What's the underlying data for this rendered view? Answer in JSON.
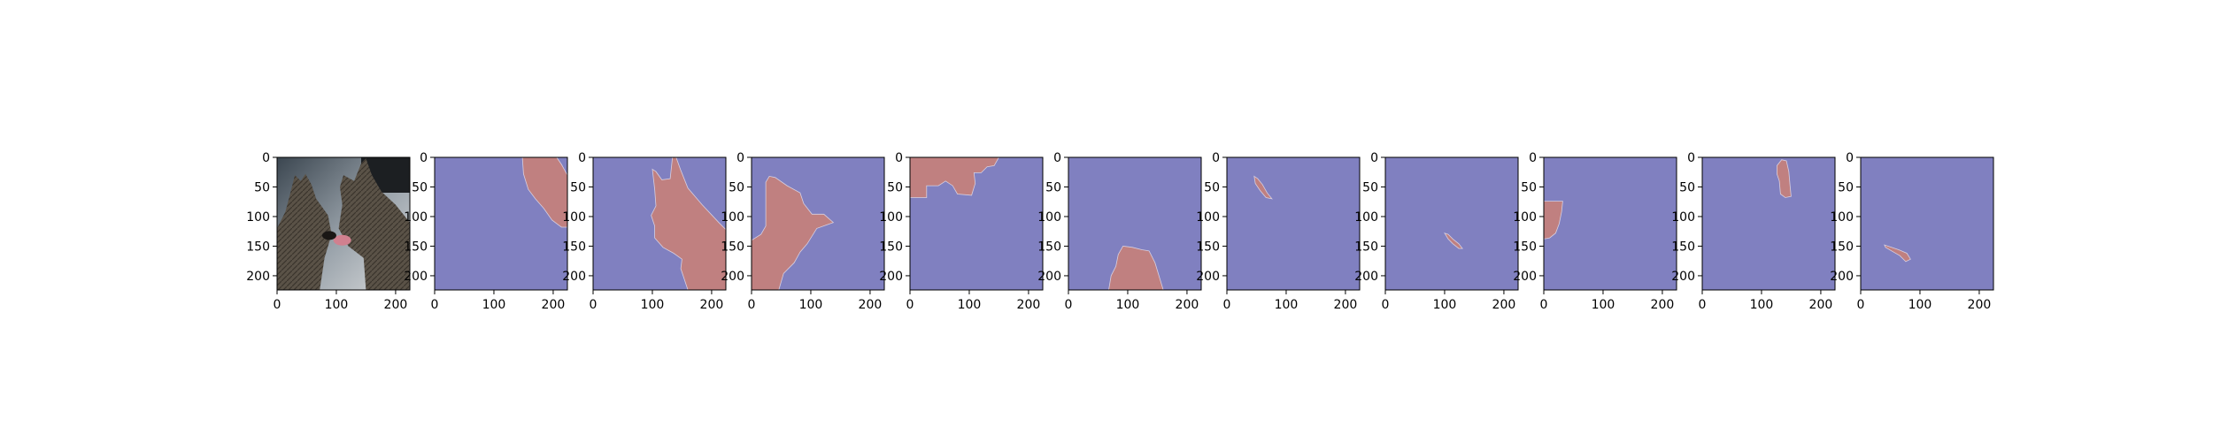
{
  "chart_data": {
    "type": "image-grid",
    "panel_count": 11,
    "image_extent": [
      0,
      224
    ],
    "x_ticks": [
      0,
      100,
      200
    ],
    "x_tick_labels": [
      "0",
      "100",
      "200"
    ],
    "y_ticks": [
      0,
      50,
      100,
      150,
      200
    ],
    "y_tick_labels": [
      "0",
      "50",
      "100",
      "150",
      "200"
    ],
    "colors": {
      "background_class": "#8080c0",
      "mask_class": "#c08080",
      "axes_edge": "#000000"
    },
    "panels": [
      {
        "kind": "photo",
        "subject": "two german shepherd dogs"
      },
      {
        "kind": "mask",
        "polygons": [
          [
            [
              148,
              0
            ],
            [
              206,
              0
            ],
            [
              214,
              12
            ],
            [
              224,
              30
            ],
            [
              224,
              118
            ],
            [
              214,
              118
            ],
            [
              198,
              106
            ],
            [
              184,
              86
            ],
            [
              170,
              70
            ],
            [
              158,
              54
            ],
            [
              150,
              28
            ]
          ]
        ]
      },
      {
        "kind": "mask",
        "polygons": [
          [
            [
              100,
              20
            ],
            [
              106,
              24
            ],
            [
              116,
              38
            ],
            [
              130,
              36
            ],
            [
              134,
              0
            ],
            [
              140,
              0
            ],
            [
              148,
              22
            ],
            [
              160,
              52
            ],
            [
              184,
              80
            ],
            [
              212,
              110
            ],
            [
              224,
              122
            ],
            [
              224,
              224
            ],
            [
              160,
              224
            ],
            [
              148,
              188
            ],
            [
              150,
              172
            ],
            [
              136,
              162
            ],
            [
              118,
              152
            ],
            [
              104,
              136
            ],
            [
              104,
              116
            ],
            [
              98,
              98
            ],
            [
              106,
              82
            ],
            [
              104,
              54
            ]
          ]
        ]
      },
      {
        "kind": "mask",
        "polygons": [
          [
            [
              24,
              42
            ],
            [
              30,
              32
            ],
            [
              40,
              34
            ],
            [
              60,
              48
            ],
            [
              82,
              60
            ],
            [
              88,
              78
            ],
            [
              102,
              96
            ],
            [
              122,
              96
            ],
            [
              138,
              110
            ],
            [
              110,
              120
            ],
            [
              94,
              146
            ],
            [
              82,
              160
            ],
            [
              72,
              178
            ],
            [
              54,
              196
            ],
            [
              46,
              224
            ],
            [
              0,
              224
            ],
            [
              0,
              140
            ],
            [
              16,
              130
            ],
            [
              24,
              116
            ]
          ]
        ]
      },
      {
        "kind": "mask",
        "polygons": [
          [
            [
              0,
              0
            ],
            [
              150,
              0
            ],
            [
              142,
              14
            ],
            [
              130,
              16
            ],
            [
              120,
              26
            ],
            [
              108,
              26
            ],
            [
              110,
              44
            ],
            [
              104,
              64
            ],
            [
              80,
              62
            ],
            [
              72,
              48
            ],
            [
              60,
              40
            ],
            [
              48,
              48
            ],
            [
              28,
              48
            ],
            [
              28,
              68
            ],
            [
              0,
              68
            ]
          ]
        ]
      },
      {
        "kind": "mask",
        "polygons": [
          [
            [
              84,
              164
            ],
            [
              92,
              150
            ],
            [
              108,
              152
            ],
            [
              124,
              156
            ],
            [
              136,
              158
            ],
            [
              146,
              178
            ],
            [
              160,
              224
            ],
            [
              68,
              224
            ],
            [
              72,
              200
            ],
            [
              80,
              184
            ]
          ]
        ]
      },
      {
        "kind": "mask",
        "polygons": [
          [
            [
              46,
              32
            ],
            [
              52,
              36
            ],
            [
              60,
              46
            ],
            [
              68,
              60
            ],
            [
              76,
              70
            ],
            [
              66,
              68
            ],
            [
              56,
              56
            ],
            [
              48,
              44
            ]
          ]
        ]
      },
      {
        "kind": "mask",
        "polygons": [
          [
            [
              100,
              128
            ],
            [
              106,
              130
            ],
            [
              114,
              138
            ],
            [
              124,
              146
            ],
            [
              130,
              154
            ],
            [
              124,
              154
            ],
            [
              114,
              146
            ],
            [
              106,
              138
            ]
          ]
        ]
      },
      {
        "kind": "mask",
        "polygons": [
          [
            [
              0,
              74
            ],
            [
              16,
              74
            ],
            [
              32,
              74
            ],
            [
              30,
              92
            ],
            [
              26,
              112
            ],
            [
              20,
              128
            ],
            [
              10,
              136
            ],
            [
              0,
              138
            ]
          ]
        ]
      },
      {
        "kind": "mask",
        "polygons": [
          [
            [
              126,
              14
            ],
            [
              134,
              4
            ],
            [
              142,
              6
            ],
            [
              146,
              24
            ],
            [
              148,
              46
            ],
            [
              150,
              66
            ],
            [
              140,
              68
            ],
            [
              132,
              62
            ],
            [
              130,
              40
            ],
            [
              126,
              28
            ]
          ]
        ]
      },
      {
        "kind": "mask",
        "polygons": [
          [
            [
              40,
              148
            ],
            [
              52,
              152
            ],
            [
              64,
              156
            ],
            [
              78,
              162
            ],
            [
              84,
              172
            ],
            [
              76,
              176
            ],
            [
              66,
              166
            ],
            [
              52,
              158
            ],
            [
              42,
              152
            ]
          ]
        ]
      }
    ]
  }
}
